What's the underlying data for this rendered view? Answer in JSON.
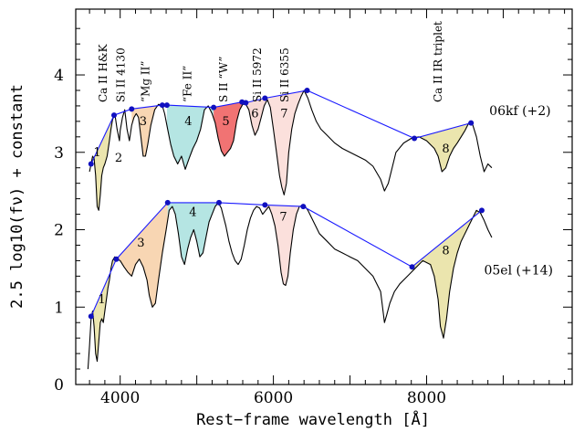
{
  "chart_data": {
    "type": "line",
    "xlabel": "Rest−frame wavelength [Å]",
    "ylabel": "2.5 log10(fν) + constant",
    "xlim": [
      3420,
      9900
    ],
    "ylim": [
      0,
      4.85
    ],
    "x_ticks": [
      4000,
      6000,
      8000
    ],
    "y_ticks": [
      0,
      1,
      2,
      3,
      4
    ],
    "grid": false,
    "line_annotations": [
      {
        "label": "Ca II H&K",
        "x": 3780
      },
      {
        "label": "Si II 4130",
        "x": 4010
      },
      {
        "label": "“Mg II”",
        "x": 4330
      },
      {
        "label": "“Fe II”",
        "x": 4880
      },
      {
        "label": "S II “W”",
        "x": 5350
      },
      {
        "label": "Si II 5972",
        "x": 5790
      },
      {
        "label": "Si II 6355",
        "x": 6150
      },
      {
        "label": "Ca II IR triplet",
        "x": 8150
      }
    ],
    "series": [
      {
        "name": "06kf (+2)",
        "label_pos": [
          9220,
          3.48
        ],
        "x": [
          3600,
          3620,
          3640,
          3660,
          3680,
          3700,
          3720,
          3740,
          3760,
          3780,
          3800,
          3830,
          3860,
          3880,
          3900,
          3930,
          3960,
          3990,
          4000,
          4030,
          4060,
          4090,
          4120,
          4150,
          4180,
          4210,
          4240,
          4270,
          4300,
          4330,
          4360,
          4400,
          4450,
          4500,
          4550,
          4580,
          4620,
          4660,
          4700,
          4750,
          4800,
          4850,
          4900,
          4950,
          5000,
          5050,
          5100,
          5150,
          5200,
          5240,
          5280,
          5320,
          5360,
          5400,
          5440,
          5480,
          5520,
          5560,
          5600,
          5640,
          5680,
          5720,
          5760,
          5800,
          5840,
          5880,
          5920,
          5960,
          6000,
          6040,
          6080,
          6110,
          6140,
          6170,
          6200,
          6240,
          6280,
          6320,
          6360,
          6400,
          6450,
          6500,
          6560,
          6620,
          6700,
          6800,
          6900,
          7000,
          7100,
          7200,
          7300,
          7400,
          7450,
          7500,
          7550,
          7600,
          7700,
          7800,
          7900,
          8000,
          8100,
          8150,
          8200,
          8250,
          8300,
          8350,
          8400,
          8450,
          8500,
          8550,
          8600,
          8650,
          8700,
          8750,
          8800,
          8850
        ],
        "y": [
          2.75,
          2.85,
          2.95,
          2.92,
          2.7,
          2.3,
          2.25,
          2.45,
          2.7,
          2.8,
          2.85,
          2.95,
          3.15,
          3.3,
          3.42,
          3.5,
          3.3,
          3.15,
          3.28,
          3.45,
          3.55,
          3.3,
          3.15,
          3.35,
          3.45,
          3.5,
          3.45,
          3.2,
          2.95,
          2.95,
          3.1,
          3.35,
          3.55,
          3.62,
          3.6,
          3.5,
          3.3,
          3.1,
          2.95,
          2.85,
          2.95,
          2.78,
          2.92,
          3.05,
          3.15,
          3.3,
          3.55,
          3.6,
          3.5,
          3.38,
          3.18,
          3.02,
          2.95,
          3.0,
          3.05,
          3.15,
          3.4,
          3.55,
          3.62,
          3.62,
          3.55,
          3.35,
          3.22,
          3.3,
          3.45,
          3.6,
          3.68,
          3.58,
          3.3,
          3.0,
          2.7,
          2.55,
          2.45,
          2.6,
          3.0,
          3.3,
          3.5,
          3.62,
          3.72,
          3.8,
          3.7,
          3.55,
          3.4,
          3.3,
          3.22,
          3.12,
          3.05,
          3.0,
          2.95,
          2.9,
          2.82,
          2.65,
          2.5,
          2.6,
          2.8,
          3.0,
          3.12,
          3.18,
          3.2,
          3.15,
          3.05,
          2.95,
          2.75,
          2.8,
          2.95,
          3.05,
          3.12,
          3.2,
          3.28,
          3.38,
          3.36,
          3.2,
          2.95,
          2.75,
          2.85,
          2.8
        ],
        "anchors_x": [
          3620,
          3920,
          4150,
          4550,
          4610,
          5220,
          5590,
          5640,
          5890,
          6440,
          7840,
          8580
        ],
        "anchors_y": [
          2.85,
          3.48,
          3.56,
          3.61,
          3.61,
          3.58,
          3.65,
          3.64,
          3.7,
          3.8,
          3.18,
          3.38
        ],
        "regions": [
          {
            "label": "1",
            "color": "#e8e0a0",
            "x": [
              3620,
              3920
            ]
          },
          {
            "label": "3",
            "color": "#f7cfa6",
            "x": [
              4150,
              4560
            ]
          },
          {
            "label": "4",
            "color": "#a8e1de",
            "x": [
              4610,
              5220
            ]
          },
          {
            "label": "5",
            "color": "#ee5a5a",
            "x": [
              5220,
              5590
            ]
          },
          {
            "label": "6",
            "color": "#f7d4cf",
            "x": [
              5640,
              5890
            ]
          },
          {
            "label": "7",
            "color": "#fadad6",
            "x": [
              5890,
              6440
            ]
          },
          {
            "label": "8",
            "color": "#e8e0a0",
            "x": [
              7840,
              8580
            ]
          }
        ],
        "region_labels": [
          {
            "text": "1",
            "x": 3700,
            "y": 2.95
          },
          {
            "text": "2",
            "x": 3980,
            "y": 2.88
          },
          {
            "text": "3",
            "x": 4300,
            "y": 3.35
          },
          {
            "text": "4",
            "x": 4890,
            "y": 3.35
          },
          {
            "text": "5",
            "x": 5380,
            "y": 3.35
          },
          {
            "text": "6",
            "x": 5760,
            "y": 3.45
          },
          {
            "text": "7",
            "x": 6140,
            "y": 3.45
          },
          {
            "text": "8",
            "x": 8250,
            "y": 3.0
          }
        ]
      },
      {
        "name": "05el (+14)",
        "label_pos": [
          9200,
          1.42
        ],
        "x": [
          3580,
          3600,
          3620,
          3640,
          3660,
          3680,
          3700,
          3720,
          3740,
          3760,
          3780,
          3800,
          3820,
          3840,
          3860,
          3880,
          3900,
          3930,
          3960,
          4000,
          4050,
          4100,
          4150,
          4200,
          4250,
          4300,
          4350,
          4380,
          4420,
          4460,
          4500,
          4550,
          4600,
          4640,
          4680,
          4720,
          4760,
          4800,
          4840,
          4880,
          4920,
          4960,
          5000,
          5040,
          5080,
          5120,
          5160,
          5200,
          5240,
          5280,
          5320,
          5340,
          5380,
          5420,
          5460,
          5500,
          5540,
          5580,
          5620,
          5660,
          5700,
          5740,
          5780,
          5820,
          5860,
          5900,
          5940,
          5980,
          6020,
          6060,
          6100,
          6130,
          6160,
          6190,
          6220,
          6260,
          6300,
          6340,
          6400,
          6450,
          6500,
          6550,
          6600,
          6700,
          6800,
          6900,
          7000,
          7100,
          7200,
          7300,
          7400,
          7450,
          7480,
          7520,
          7580,
          7650,
          7750,
          7850,
          7950,
          8050,
          8100,
          8150,
          8180,
          8220,
          8260,
          8300,
          8350,
          8400,
          8450,
          8500,
          8550,
          8600,
          8650,
          8700,
          8750,
          8800,
          8850
        ],
        "y": [
          0.2,
          0.5,
          0.85,
          0.95,
          0.75,
          0.4,
          0.3,
          0.55,
          0.8,
          0.85,
          0.8,
          0.95,
          1.1,
          1.25,
          1.35,
          1.5,
          1.6,
          1.65,
          1.62,
          1.6,
          1.52,
          1.45,
          1.4,
          1.55,
          1.62,
          1.52,
          1.35,
          1.15,
          1.0,
          1.05,
          1.35,
          1.7,
          2.0,
          2.25,
          2.3,
          2.2,
          1.95,
          1.65,
          1.55,
          1.75,
          1.9,
          2.0,
          1.85,
          1.65,
          1.7,
          1.9,
          2.1,
          2.2,
          2.3,
          2.35,
          2.28,
          2.2,
          2.05,
          1.85,
          1.7,
          1.6,
          1.55,
          1.62,
          1.8,
          2.0,
          2.15,
          2.25,
          2.3,
          2.28,
          2.2,
          2.25,
          2.3,
          2.2,
          2.05,
          1.8,
          1.45,
          1.3,
          1.28,
          1.4,
          1.7,
          2.0,
          2.2,
          2.3,
          2.32,
          2.25,
          2.15,
          2.05,
          1.95,
          1.85,
          1.75,
          1.7,
          1.65,
          1.6,
          1.5,
          1.4,
          1.2,
          0.8,
          0.9,
          1.05,
          1.2,
          1.3,
          1.4,
          1.5,
          1.6,
          1.55,
          1.4,
          1.1,
          0.75,
          0.6,
          0.85,
          1.2,
          1.5,
          1.7,
          1.85,
          1.95,
          2.05,
          2.15,
          2.25,
          2.22,
          2.12,
          2.0,
          1.9
        ],
        "anchors_x": [
          3620,
          3950,
          4620,
          5290,
          5890,
          6390,
          7810,
          8720
        ],
        "anchors_y": [
          0.88,
          1.62,
          2.35,
          2.35,
          2.32,
          2.3,
          1.52,
          2.25
        ],
        "regions": [
          {
            "label": "1",
            "color": "#e8e0a0",
            "x": [
              3620,
              3950
            ]
          },
          {
            "label": "3",
            "color": "#f7cfa6",
            "x": [
              3950,
              4620
            ]
          },
          {
            "label": "4",
            "color": "#a8e1de",
            "x": [
              4620,
              5290
            ]
          },
          {
            "label": "7",
            "color": "#fadad6",
            "x": [
              5890,
              6390
            ]
          },
          {
            "label": "8",
            "color": "#e8e0a0",
            "x": [
              7810,
              8720
            ]
          }
        ],
        "region_labels": [
          {
            "text": "1",
            "x": 3760,
            "y": 1.05
          },
          {
            "text": "3",
            "x": 4270,
            "y": 1.78
          },
          {
            "text": "4",
            "x": 4950,
            "y": 2.18
          },
          {
            "text": "7",
            "x": 6130,
            "y": 2.12
          },
          {
            "text": "8",
            "x": 8250,
            "y": 1.68
          }
        ]
      }
    ],
    "colors": {
      "spectrum": "#000000",
      "continuum": "#1a1aff",
      "anchor": "#1010c0"
    }
  }
}
